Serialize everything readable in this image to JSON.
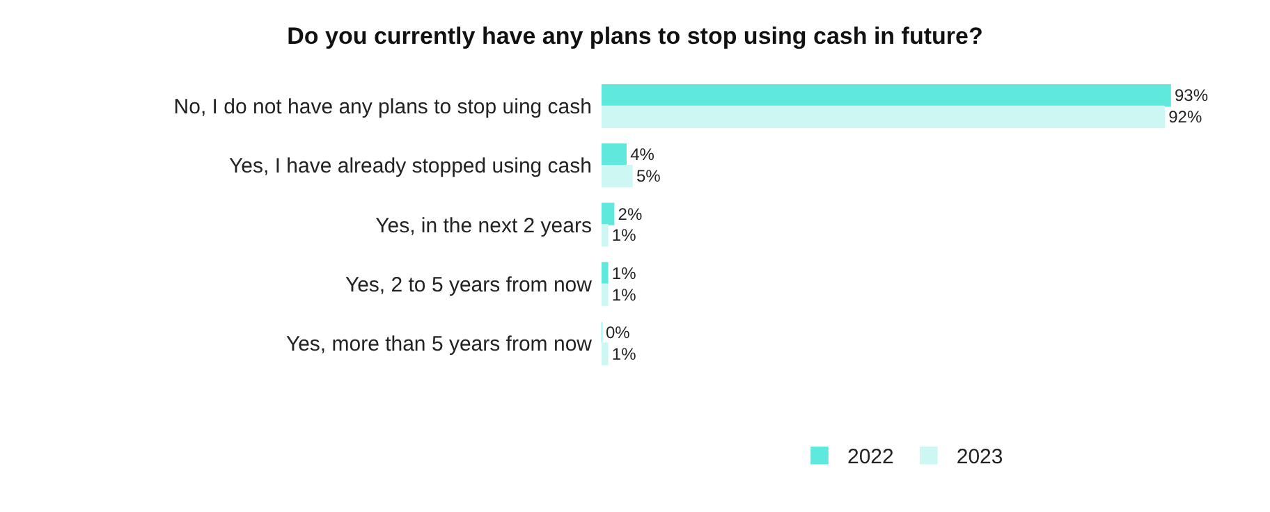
{
  "chart_data": {
    "type": "bar",
    "orientation": "horizontal",
    "title": "Do you currently have any plans to stop using cash in future?",
    "categories": [
      "No, I do not have any plans to stop uing cash",
      "Yes, I have already stopped using cash",
      "Yes, in the next 2 years",
      "Yes, 2 to 5 years from now",
      "Yes, more than 5 years from now"
    ],
    "series": [
      {
        "name": "2022",
        "color": "#5fe8dc",
        "values": [
          93,
          4,
          2,
          1,
          0
        ],
        "value_labels": [
          "93%",
          "4%",
          "2%",
          "1%",
          "0%"
        ]
      },
      {
        "name": "2023",
        "color": "#cdf7f3",
        "values": [
          92,
          5,
          1,
          1,
          1
        ],
        "value_labels": [
          "92%",
          "5%",
          "1%",
          "1%",
          "1%"
        ]
      }
    ],
    "legend": "bottom"
  }
}
